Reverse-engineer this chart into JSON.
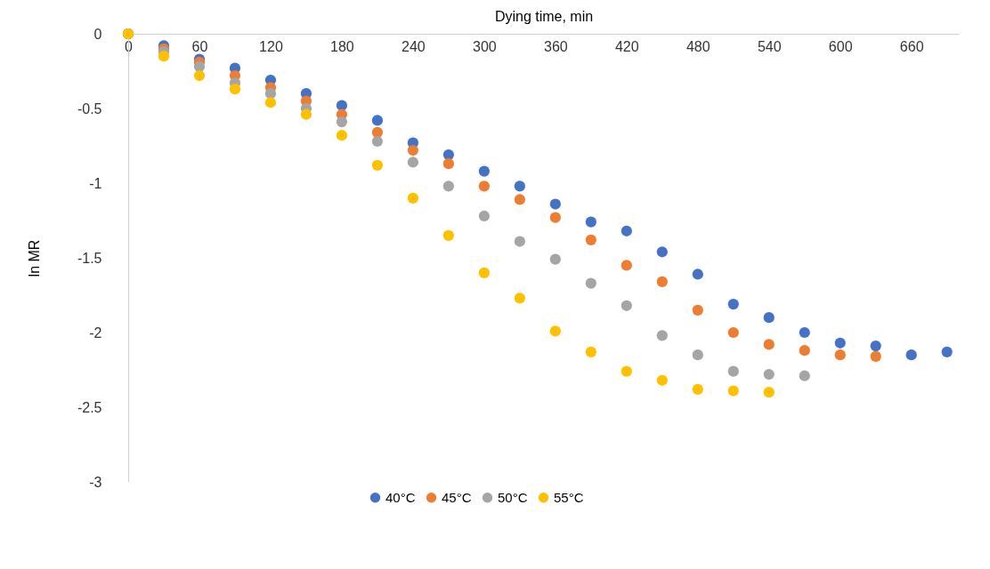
{
  "chart_data": {
    "type": "scatter",
    "xlabel": "Dying time, min",
    "ylabel": "ln MR",
    "x": [
      0,
      30,
      60,
      90,
      120,
      150,
      180,
      210,
      240,
      270,
      300,
      330,
      360,
      390,
      420,
      450,
      480,
      510,
      540,
      570,
      600,
      630,
      660,
      690
    ],
    "xlim": [
      0,
      700
    ],
    "xticks": [
      0,
      60,
      120,
      180,
      240,
      300,
      360,
      420,
      480,
      540,
      600,
      660
    ],
    "ylim": [
      -3,
      0
    ],
    "yticks": [
      0,
      -0.5,
      -1,
      -1.5,
      -2,
      -2.5,
      -3
    ],
    "grid": false,
    "legend": "bottom",
    "marker": "circle",
    "series": [
      {
        "name": "40°C",
        "color": "#4472c4",
        "values": [
          0,
          -0.08,
          -0.17,
          -0.23,
          -0.31,
          -0.4,
          -0.48,
          -0.58,
          -0.73,
          -0.81,
          -0.92,
          -1.02,
          -1.14,
          -1.26,
          -1.32,
          -1.46,
          -1.61,
          -1.81,
          -1.9,
          -2.0,
          -2.07,
          -2.09,
          -2.15,
          -2.13
        ]
      },
      {
        "name": "45°C",
        "color": "#ed7d31",
        "values": [
          0,
          -0.1,
          -0.19,
          -0.28,
          -0.36,
          -0.45,
          -0.54,
          -0.66,
          -0.78,
          -0.87,
          -1.02,
          -1.11,
          -1.23,
          -1.38,
          -1.55,
          -1.66,
          -1.85,
          -2.0,
          -2.08,
          -2.12,
          -2.15,
          -2.16,
          null,
          null
        ]
      },
      {
        "name": "50°C",
        "color": "#a5a5a5",
        "values": [
          0,
          -0.12,
          -0.22,
          -0.33,
          -0.4,
          -0.5,
          -0.59,
          -0.72,
          -0.86,
          -1.02,
          -1.22,
          -1.39,
          -1.51,
          -1.67,
          -1.82,
          -2.02,
          -2.15,
          -2.26,
          -2.28,
          -2.29,
          null,
          null,
          null,
          null
        ]
      },
      {
        "name": "55°C",
        "color": "#ffc000",
        "values": [
          0,
          -0.15,
          -0.28,
          -0.37,
          -0.46,
          -0.54,
          -0.68,
          -0.88,
          -1.1,
          -1.35,
          -1.6,
          -1.77,
          -1.99,
          -2.13,
          -2.26,
          -2.32,
          -2.38,
          -2.39,
          -2.4,
          null,
          null,
          null,
          null,
          null
        ]
      }
    ]
  }
}
